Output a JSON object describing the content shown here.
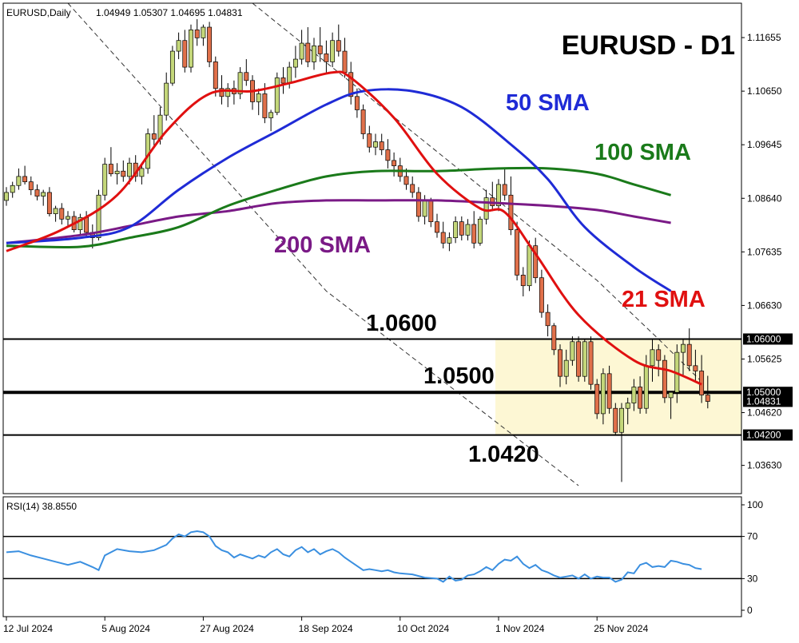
{
  "header": {
    "symbol": "EURUSD,Daily",
    "ohlc": "1.04949 1.05307 1.04695 1.04831"
  },
  "title": "EURUSD - D1",
  "ma_labels": [
    {
      "text": "50 SMA",
      "color": "#1f2bd6"
    },
    {
      "text": "100 SMA",
      "color": "#1a7a1a"
    },
    {
      "text": "200 SMA",
      "color": "#7a1a86"
    },
    {
      "text": "21 SMA",
      "color": "#e01010"
    }
  ],
  "level_labels": [
    {
      "text": "1.0600",
      "value": 1.06
    },
    {
      "text": "1.0500",
      "value": 1.05
    },
    {
      "text": "1.0420",
      "value": 1.042
    }
  ],
  "price_axis": {
    "ticks": [
      "1.11655",
      "1.10650",
      "1.09645",
      "1.08640",
      "1.07635",
      "1.06630",
      "1.05625",
      "1.04620",
      "1.03630"
    ],
    "tick_values": [
      1.11655,
      1.1065,
      1.09645,
      1.0864,
      1.07635,
      1.0663,
      1.05625,
      1.0462,
      1.0363
    ],
    "boxed": [
      "1.06000",
      "1.05000",
      "1.04831",
      "1.04200"
    ],
    "boxed_values": [
      1.06,
      1.05,
      1.04831,
      1.042
    ]
  },
  "rsi": {
    "label": "RSI(14) 38.8550",
    "ticks": [
      "100",
      "70",
      "30",
      "0"
    ],
    "tick_values": [
      100,
      70,
      30,
      0
    ],
    "levels": [
      70,
      30
    ],
    "color": "#3a8fe0"
  },
  "x_axis": {
    "labels": [
      "12 Jul 2024",
      "5 Aug 2024",
      "27 Aug 2024",
      "18 Sep 2024",
      "10 Oct 2024",
      "1 Nov 2024",
      "25 Nov 2024"
    ],
    "label_bars": [
      0,
      16,
      32,
      48,
      64,
      80,
      96
    ]
  },
  "colors": {
    "bull": "#c4d77a",
    "bear": "#e0704a",
    "sma21": "#e01010",
    "sma50": "#1f2bd6",
    "sma100": "#1a7a1a",
    "sma200": "#7a1a86",
    "zone": "#fdf7d4"
  },
  "chart_data": {
    "type": "candlestick",
    "title": "EURUSD - D1",
    "x_start": "12 Jul 2024",
    "ylim": [
      1.031,
      1.123
    ],
    "candles": [
      [
        1.086,
        1.0885,
        1.085,
        1.0875
      ],
      [
        1.0875,
        1.0895,
        1.0865,
        1.0888
      ],
      [
        1.0888,
        1.092,
        1.088,
        1.0905
      ],
      [
        1.0905,
        1.0925,
        1.089,
        1.0895
      ],
      [
        1.0895,
        1.0905,
        1.087,
        1.088
      ],
      [
        1.088,
        1.089,
        1.086,
        1.0868
      ],
      [
        1.0868,
        1.088,
        1.085,
        1.0875
      ],
      [
        1.0875,
        1.0885,
        1.083,
        1.0835
      ],
      [
        1.0835,
        1.085,
        1.082,
        1.0845
      ],
      [
        1.0845,
        1.0855,
        1.0815,
        1.0825
      ],
      [
        1.0825,
        1.084,
        1.081,
        1.083
      ],
      [
        1.083,
        1.084,
        1.08,
        1.0805
      ],
      [
        1.0805,
        1.0835,
        1.0795,
        1.0828
      ],
      [
        1.0828,
        1.084,
        1.079,
        1.08
      ],
      [
        1.08,
        1.0815,
        1.077,
        1.079
      ],
      [
        1.079,
        1.088,
        1.0785,
        1.087
      ],
      [
        1.087,
        1.094,
        1.086,
        1.0928
      ],
      [
        1.0928,
        1.096,
        1.0905,
        1.091
      ],
      [
        1.091,
        1.093,
        1.089,
        1.0915
      ],
      [
        1.0915,
        1.0935,
        1.0895,
        1.0905
      ],
      [
        1.0905,
        1.094,
        1.089,
        1.093
      ],
      [
        1.093,
        1.0945,
        1.0895,
        1.0905
      ],
      [
        1.0905,
        1.093,
        1.089,
        1.092
      ],
      [
        1.092,
        1.0995,
        1.091,
        1.0985
      ],
      [
        1.0985,
        1.102,
        1.096,
        1.0975
      ],
      [
        1.0975,
        1.1035,
        1.0965,
        1.102
      ],
      [
        1.102,
        1.11,
        1.101,
        1.108
      ],
      [
        1.108,
        1.115,
        1.1075,
        1.114
      ],
      [
        1.114,
        1.1175,
        1.1125,
        1.116
      ],
      [
        1.116,
        1.118,
        1.11,
        1.111
      ],
      [
        1.111,
        1.119,
        1.11,
        1.118
      ],
      [
        1.118,
        1.12,
        1.115,
        1.1165
      ],
      [
        1.1165,
        1.119,
        1.115,
        1.1185
      ],
      [
        1.1185,
        1.1195,
        1.111,
        1.112
      ],
      [
        1.112,
        1.113,
        1.1055,
        1.107
      ],
      [
        1.107,
        1.1095,
        1.104,
        1.1055
      ],
      [
        1.1055,
        1.108,
        1.1035,
        1.107
      ],
      [
        1.107,
        1.1085,
        1.104,
        1.106
      ],
      [
        1.106,
        1.111,
        1.105,
        1.11
      ],
      [
        1.11,
        1.1125,
        1.1075,
        1.1085
      ],
      [
        1.1085,
        1.1095,
        1.103,
        1.1045
      ],
      [
        1.1045,
        1.107,
        1.102,
        1.106
      ],
      [
        1.106,
        1.108,
        1.1005,
        1.1015
      ],
      [
        1.1015,
        1.103,
        1.099,
        1.1025
      ],
      [
        1.1025,
        1.11,
        1.102,
        1.109
      ],
      [
        1.109,
        1.111,
        1.106,
        1.108
      ],
      [
        1.108,
        1.112,
        1.107,
        1.111
      ],
      [
        1.111,
        1.115,
        1.109,
        1.1125
      ],
      [
        1.1125,
        1.118,
        1.1115,
        1.1155
      ],
      [
        1.1155,
        1.1185,
        1.111,
        1.112
      ],
      [
        1.112,
        1.1165,
        1.1105,
        1.115
      ],
      [
        1.115,
        1.1185,
        1.112,
        1.1135
      ],
      [
        1.1135,
        1.116,
        1.11,
        1.112
      ],
      [
        1.112,
        1.1175,
        1.111,
        1.116
      ],
      [
        1.116,
        1.119,
        1.113,
        1.114
      ],
      [
        1.114,
        1.1165,
        1.109,
        1.11
      ],
      [
        1.11,
        1.112,
        1.104,
        1.1055
      ],
      [
        1.1055,
        1.107,
        1.1015,
        1.103
      ],
      [
        1.103,
        1.104,
        1.0975,
        1.0985
      ],
      [
        1.0985,
        1.1,
        1.095,
        1.096
      ],
      [
        1.096,
        1.0985,
        1.0945,
        1.097
      ],
      [
        1.097,
        1.0985,
        1.0945,
        1.0955
      ],
      [
        1.0955,
        1.0975,
        1.092,
        1.0935
      ],
      [
        1.0935,
        1.095,
        1.0905,
        1.0925
      ],
      [
        1.0925,
        1.094,
        1.0895,
        1.0905
      ],
      [
        1.0905,
        1.092,
        1.088,
        1.089
      ],
      [
        1.089,
        1.0905,
        1.0865,
        1.0875
      ],
      [
        1.0875,
        1.0885,
        1.082,
        1.083
      ],
      [
        1.083,
        1.087,
        1.0815,
        1.086
      ],
      [
        1.086,
        1.0865,
        1.081,
        1.082
      ],
      [
        1.082,
        1.0835,
        1.079,
        1.08
      ],
      [
        1.08,
        1.082,
        1.077,
        1.078
      ],
      [
        1.078,
        1.08,
        1.0765,
        1.079
      ],
      [
        1.079,
        1.083,
        1.078,
        1.082
      ],
      [
        1.082,
        1.083,
        1.0785,
        1.0795
      ],
      [
        1.0795,
        1.0825,
        1.0785,
        1.0815
      ],
      [
        1.0815,
        1.084,
        1.077,
        1.078
      ],
      [
        1.078,
        1.083,
        1.0775,
        1.0825
      ],
      [
        1.0825,
        1.088,
        1.0815,
        1.0865
      ],
      [
        1.0865,
        1.0895,
        1.084,
        1.085
      ],
      [
        1.085,
        1.09,
        1.084,
        1.089
      ],
      [
        1.089,
        1.092,
        1.086,
        1.087
      ],
      [
        1.087,
        1.0905,
        1.0795,
        1.0805
      ],
      [
        1.0805,
        1.082,
        1.071,
        1.072
      ],
      [
        1.072,
        1.0735,
        1.068,
        1.07
      ],
      [
        1.07,
        1.0785,
        1.069,
        1.0775
      ],
      [
        1.0775,
        1.079,
        1.0705,
        1.0715
      ],
      [
        1.0715,
        1.073,
        1.064,
        1.065
      ],
      [
        1.065,
        1.0665,
        1.0605,
        1.0625
      ],
      [
        1.0625,
        1.063,
        1.057,
        1.058
      ],
      [
        1.058,
        1.059,
        1.051,
        1.053
      ],
      [
        1.053,
        1.058,
        1.0515,
        1.056
      ],
      [
        1.056,
        1.0605,
        1.055,
        1.0595
      ],
      [
        1.0595,
        1.0605,
        1.052,
        1.053
      ],
      [
        1.053,
        1.06,
        1.052,
        1.0595
      ],
      [
        1.0595,
        1.0605,
        1.0505,
        1.0515
      ],
      [
        1.0515,
        1.0525,
        1.045,
        1.046
      ],
      [
        1.046,
        1.0545,
        1.044,
        1.0535
      ],
      [
        1.0535,
        1.055,
        1.046,
        1.047
      ],
      [
        1.047,
        1.048,
        1.042,
        1.0425
      ],
      [
        1.0425,
        1.048,
        1.0332,
        1.047
      ],
      [
        1.047,
        1.049,
        1.044,
        1.048
      ],
      [
        1.048,
        1.0525,
        1.0465,
        1.051
      ],
      [
        1.051,
        1.053,
        1.046,
        1.047
      ],
      [
        1.047,
        1.057,
        1.046,
        1.055
      ],
      [
        1.055,
        1.06,
        1.052,
        1.058
      ],
      [
        1.058,
        1.059,
        1.053,
        1.056
      ],
      [
        1.056,
        1.057,
        1.048,
        1.049
      ],
      [
        1.049,
        1.05,
        1.045,
        1.05
      ],
      [
        1.05,
        1.059,
        1.048,
        1.0575
      ],
      [
        1.0575,
        1.06,
        1.053,
        1.059
      ],
      [
        1.059,
        1.062,
        1.054,
        1.055
      ],
      [
        1.055,
        1.058,
        1.052,
        1.054
      ],
      [
        1.054,
        1.057,
        1.048,
        1.0495
      ],
      [
        1.0495,
        1.0531,
        1.047,
        1.0483
      ]
    ],
    "sma21": [
      [
        0,
        1.0765
      ],
      [
        9,
        1.0805
      ],
      [
        18,
        1.087
      ],
      [
        26,
        1.099
      ],
      [
        33,
        1.106
      ],
      [
        40,
        1.1065
      ],
      [
        46,
        1.108
      ],
      [
        53,
        1.11
      ],
      [
        56,
        1.109
      ],
      [
        63,
        1.1015
      ],
      [
        70,
        1.091
      ],
      [
        77,
        1.0845
      ],
      [
        81,
        1.0838
      ],
      [
        86,
        1.076
      ],
      [
        93,
        1.0645
      ],
      [
        102,
        1.056
      ],
      [
        108,
        1.054
      ],
      [
        113,
        1.0515
      ]
    ],
    "sma50": [
      [
        0,
        1.078
      ],
      [
        12,
        1.079
      ],
      [
        20,
        1.081
      ],
      [
        28,
        1.088
      ],
      [
        36,
        1.094
      ],
      [
        44,
        1.099
      ],
      [
        52,
        1.104
      ],
      [
        58,
        1.1065
      ],
      [
        66,
        1.1065
      ],
      [
        74,
        1.1035
      ],
      [
        82,
        1.0965
      ],
      [
        88,
        1.09
      ],
      [
        94,
        1.081
      ],
      [
        102,
        1.0735
      ],
      [
        108,
        1.069
      ]
    ],
    "sma100": [
      [
        0,
        1.0775
      ],
      [
        12,
        1.0773
      ],
      [
        20,
        1.079
      ],
      [
        28,
        1.081
      ],
      [
        36,
        1.085
      ],
      [
        44,
        1.088
      ],
      [
        52,
        1.0905
      ],
      [
        60,
        1.0915
      ],
      [
        70,
        1.0915
      ],
      [
        80,
        1.092
      ],
      [
        88,
        1.092
      ],
      [
        96,
        1.091
      ],
      [
        102,
        1.089
      ],
      [
        108,
        1.087
      ]
    ],
    "sma200": [
      [
        0,
        1.078
      ],
      [
        12,
        1.0795
      ],
      [
        20,
        1.0812
      ],
      [
        28,
        1.083
      ],
      [
        36,
        1.084
      ],
      [
        44,
        1.0855
      ],
      [
        52,
        1.086
      ],
      [
        60,
        1.086
      ],
      [
        70,
        1.086
      ],
      [
        80,
        1.0855
      ],
      [
        88,
        1.085
      ],
      [
        96,
        1.0842
      ],
      [
        102,
        1.083
      ],
      [
        108,
        1.0818
      ]
    ],
    "rsi14": [
      [
        0,
        55
      ],
      [
        2,
        56
      ],
      [
        4,
        52
      ],
      [
        6,
        49
      ],
      [
        8,
        46
      ],
      [
        10,
        43
      ],
      [
        12,
        46
      ],
      [
        14,
        41
      ],
      [
        15,
        38
      ],
      [
        16,
        52
      ],
      [
        18,
        58
      ],
      [
        20,
        56
      ],
      [
        22,
        55
      ],
      [
        24,
        57
      ],
      [
        26,
        62
      ],
      [
        27,
        68
      ],
      [
        28,
        72
      ],
      [
        29,
        70
      ],
      [
        30,
        74
      ],
      [
        31,
        75
      ],
      [
        32,
        74
      ],
      [
        33,
        70
      ],
      [
        34,
        61
      ],
      [
        35,
        57
      ],
      [
        36,
        55
      ],
      [
        37,
        50
      ],
      [
        38,
        53
      ],
      [
        39,
        51
      ],
      [
        40,
        49
      ],
      [
        41,
        52
      ],
      [
        42,
        50
      ],
      [
        43,
        55
      ],
      [
        44,
        58
      ],
      [
        45,
        53
      ],
      [
        46,
        51
      ],
      [
        47,
        57
      ],
      [
        48,
        60
      ],
      [
        49,
        55
      ],
      [
        50,
        58
      ],
      [
        51,
        53
      ],
      [
        52,
        56
      ],
      [
        53,
        58
      ],
      [
        54,
        55
      ],
      [
        55,
        50
      ],
      [
        56,
        46
      ],
      [
        57,
        42
      ],
      [
        58,
        38
      ],
      [
        59,
        39
      ],
      [
        60,
        38
      ],
      [
        61,
        37
      ],
      [
        62,
        38
      ],
      [
        63,
        36
      ],
      [
        64,
        35
      ],
      [
        66,
        34
      ],
      [
        68,
        31
      ],
      [
        70,
        30
      ],
      [
        71,
        27
      ],
      [
        72,
        32
      ],
      [
        73,
        28
      ],
      [
        74,
        29
      ],
      [
        75,
        33
      ],
      [
        76,
        34
      ],
      [
        77,
        37
      ],
      [
        78,
        41
      ],
      [
        79,
        38
      ],
      [
        80,
        44
      ],
      [
        81,
        48
      ],
      [
        82,
        47
      ],
      [
        83,
        51
      ],
      [
        84,
        44
      ],
      [
        85,
        40
      ],
      [
        86,
        43
      ],
      [
        87,
        38
      ],
      [
        88,
        36
      ],
      [
        89,
        33
      ],
      [
        90,
        31
      ],
      [
        91,
        32
      ],
      [
        92,
        33
      ],
      [
        93,
        30
      ],
      [
        94,
        34
      ],
      [
        95,
        30
      ],
      [
        96,
        32
      ],
      [
        97,
        31
      ],
      [
        98,
        31
      ],
      [
        99,
        27
      ],
      [
        100,
        29
      ],
      [
        101,
        36
      ],
      [
        102,
        35
      ],
      [
        103,
        43
      ],
      [
        104,
        45
      ],
      [
        105,
        41
      ],
      [
        106,
        42
      ],
      [
        107,
        41
      ],
      [
        108,
        47
      ],
      [
        109,
        46
      ],
      [
        110,
        44
      ],
      [
        111,
        43
      ],
      [
        112,
        40
      ],
      [
        113,
        39
      ]
    ],
    "trend_lines": [
      [
        [
          10,
          1.123
        ],
        [
          52,
          1.069
        ],
        [
          93,
          1.0325
        ]
      ],
      [
        [
          40,
          1.123
        ],
        [
          96,
          1.071
        ],
        [
          106,
          1.06
        ],
        [
          113,
          1.052
        ]
      ]
    ],
    "levels": [
      1.06,
      1.05,
      1.042
    ],
    "zone": {
      "from_bar": 80,
      "top": 1.06,
      "bottom": 1.042
    }
  }
}
